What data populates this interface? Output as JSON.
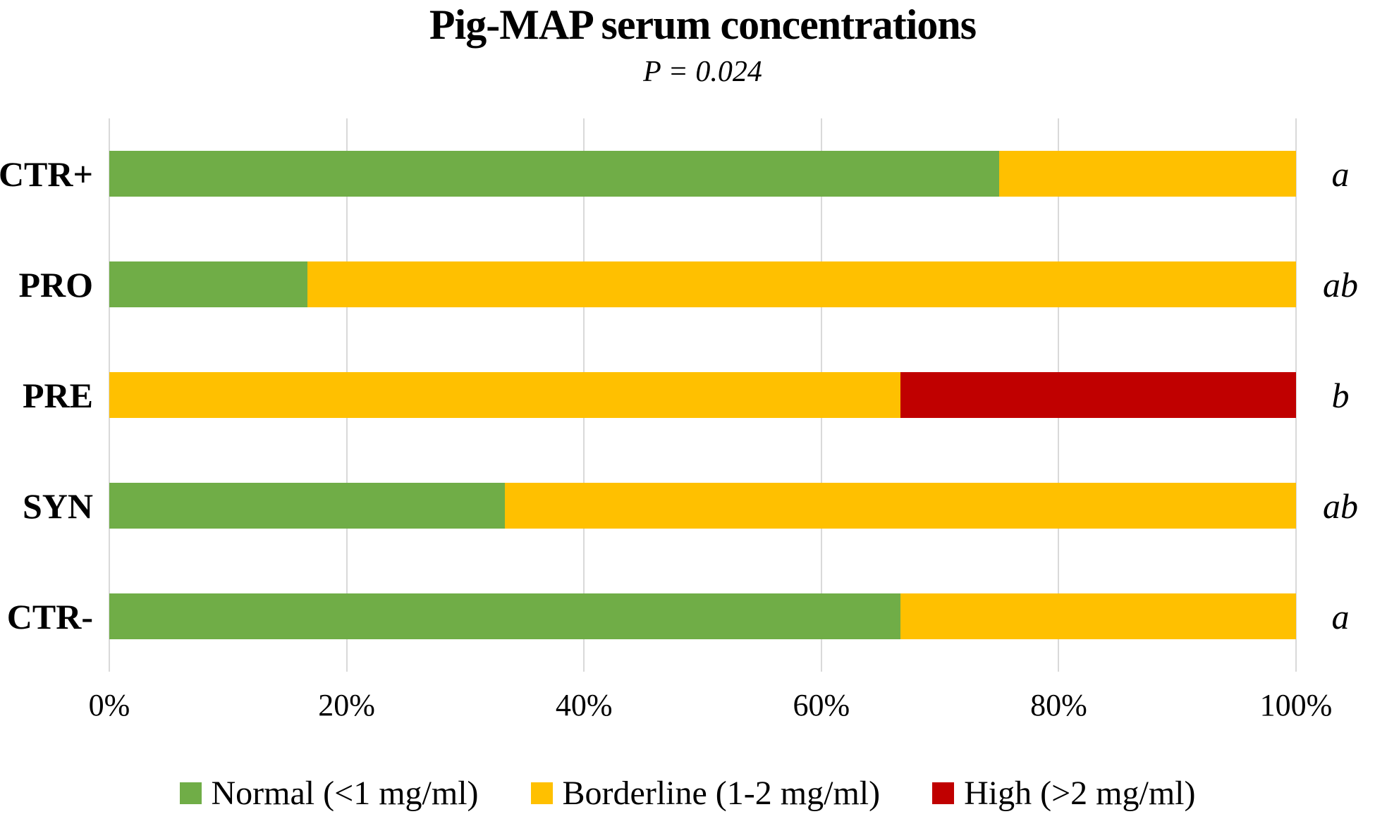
{
  "chart_data": {
    "type": "bar",
    "orientation": "horizontal",
    "stacked": true,
    "stack_total": 100,
    "title": "Pig-MAP serum concentrations",
    "subtitle": "P = 0.024",
    "categories": [
      "CTR+",
      "PRO",
      "PRE",
      "SYN",
      "CTR-"
    ],
    "series": [
      {
        "name": "Normal (<1 mg/ml)",
        "color": "#70AD47",
        "values": [
          75,
          16.67,
          0,
          33.33,
          66.67
        ]
      },
      {
        "name": "Borderline (1-2 mg/ml)",
        "color": "#FFC000",
        "values": [
          25,
          83.33,
          66.67,
          66.67,
          33.33
        ]
      },
      {
        "name": "High (>2 mg/ml)",
        "color": "#C00000",
        "values": [
          0,
          0,
          33.33,
          0,
          0
        ]
      }
    ],
    "significance_letters": [
      "a",
      "ab",
      "b",
      "ab",
      "a"
    ],
    "x_axis": {
      "ticks": [
        "0%",
        "20%",
        "40%",
        "60%",
        "80%",
        "100%"
      ],
      "tick_values": [
        0,
        20,
        40,
        60,
        80,
        100
      ],
      "range": [
        0,
        100
      ],
      "grid": true
    },
    "legend_position": "bottom",
    "colors": {
      "gridline": "#D9D9D9",
      "text": "#000000",
      "background": "#FFFFFF"
    }
  }
}
